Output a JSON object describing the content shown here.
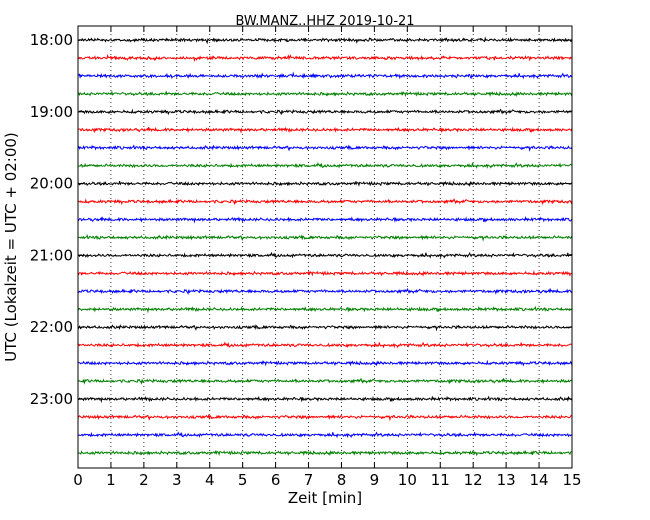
{
  "chart_data": {
    "type": "line",
    "title": "BW.MANZ..HHZ 2019-10-21",
    "xlabel": "Zeit  [min]",
    "ylabel": "UTC (Lokalzeit = UTC + 02:00)",
    "xlim": [
      0,
      15
    ],
    "x_ticks": [
      0,
      1,
      2,
      3,
      4,
      5,
      6,
      7,
      8,
      9,
      10,
      11,
      12,
      13,
      14,
      15
    ],
    "grid": "vertical dotted",
    "y_tick_labels": [
      "18:00",
      "19:00",
      "20:00",
      "21:00",
      "22:00",
      "23:00"
    ],
    "rows_per_hour": 4,
    "row_minutes": 15,
    "colors": [
      "#000000",
      "#ff0000",
      "#0000ff",
      "#008000"
    ],
    "rows": [
      {
        "start": "18:00",
        "color": "#000000"
      },
      {
        "start": "18:15",
        "color": "#ff0000"
      },
      {
        "start": "18:30",
        "color": "#0000ff"
      },
      {
        "start": "18:45",
        "color": "#008000"
      },
      {
        "start": "19:00",
        "color": "#000000"
      },
      {
        "start": "19:15",
        "color": "#ff0000"
      },
      {
        "start": "19:30",
        "color": "#0000ff"
      },
      {
        "start": "19:45",
        "color": "#008000"
      },
      {
        "start": "20:00",
        "color": "#000000"
      },
      {
        "start": "20:15",
        "color": "#ff0000"
      },
      {
        "start": "20:30",
        "color": "#0000ff"
      },
      {
        "start": "20:45",
        "color": "#008000"
      },
      {
        "start": "21:00",
        "color": "#000000"
      },
      {
        "start": "21:15",
        "color": "#ff0000"
      },
      {
        "start": "21:30",
        "color": "#0000ff"
      },
      {
        "start": "21:45",
        "color": "#008000"
      },
      {
        "start": "22:00",
        "color": "#000000"
      },
      {
        "start": "22:15",
        "color": "#ff0000"
      },
      {
        "start": "22:30",
        "color": "#0000ff"
      },
      {
        "start": "22:45",
        "color": "#008000"
      },
      {
        "start": "23:00",
        "color": "#000000"
      },
      {
        "start": "23:15",
        "color": "#ff0000"
      },
      {
        "start": "23:30",
        "color": "#0000ff"
      },
      {
        "start": "23:45",
        "color": "#008000"
      }
    ]
  }
}
